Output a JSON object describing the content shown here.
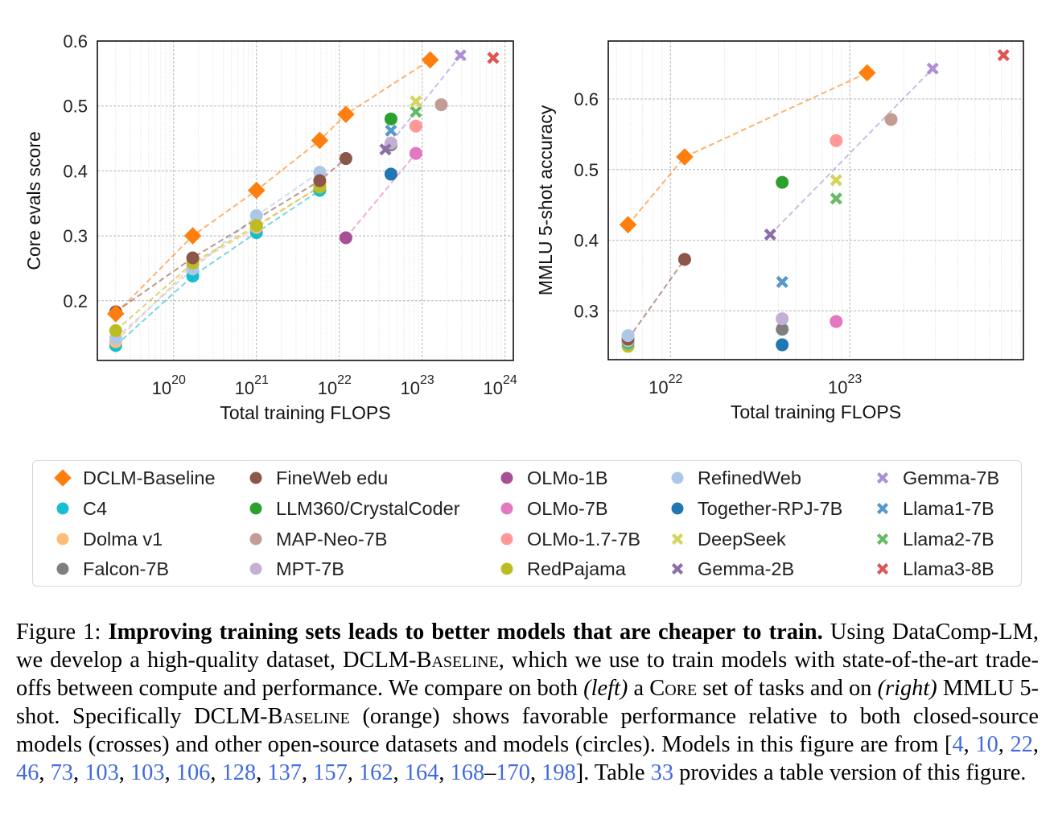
{
  "legend": {
    "items": [
      {
        "name": "DCLM-Baseline",
        "color": "#ff7f0e",
        "marker": "diamond"
      },
      {
        "name": "C4",
        "color": "#17becf",
        "marker": "circle"
      },
      {
        "name": "Dolma v1",
        "color": "#ffbb78",
        "marker": "circle"
      },
      {
        "name": "Falcon-7B",
        "color": "#7f7f7f",
        "marker": "circle"
      },
      {
        "name": "FineWeb edu",
        "color": "#8c564b",
        "marker": "circle"
      },
      {
        "name": "LLM360/CrystalCoder",
        "color": "#2ca02c",
        "marker": "circle"
      },
      {
        "name": "MAP-Neo-7B",
        "color": "#c49c94",
        "marker": "circle"
      },
      {
        "name": "MPT-7B",
        "color": "#c5b0d5",
        "marker": "circle"
      },
      {
        "name": "OLMo-1B",
        "color": "#a55194",
        "marker": "circle"
      },
      {
        "name": "OLMo-7B",
        "color": "#e377c2",
        "marker": "circle"
      },
      {
        "name": "OLMo-1.7-7B",
        "color": "#ff9896",
        "marker": "circle"
      },
      {
        "name": "RedPajama",
        "color": "#bcbd22",
        "marker": "circle"
      },
      {
        "name": "RefinedWeb",
        "color": "#aec7e8",
        "marker": "circle"
      },
      {
        "name": "Together-RPJ-7B",
        "color": "#1f77b4",
        "marker": "circle"
      },
      {
        "name": "DeepSeek",
        "color": "#d4d45e",
        "marker": "x"
      },
      {
        "name": "Gemma-2B",
        "color": "#8a6fa8",
        "marker": "x"
      },
      {
        "name": "Gemma-7B",
        "color": "#ae8fd6",
        "marker": "x"
      },
      {
        "name": "Llama1-7B",
        "color": "#5599cc",
        "marker": "x"
      },
      {
        "name": "Llama2-7B",
        "color": "#66bb66",
        "marker": "x"
      },
      {
        "name": "Llama3-8B",
        "color": "#e05555",
        "marker": "x"
      }
    ]
  },
  "chart_data": [
    {
      "type": "scatter",
      "xlabel": "Total training FLOPS",
      "ylabel": "Core evals score",
      "xscale": "log",
      "xlim": [
        1.2e+19,
        1.26e+24
      ],
      "ylim": [
        0.108,
        0.6
      ],
      "grid": true,
      "xticks": [
        {
          "value": 1e+20,
          "base": "10",
          "exp": "20"
        },
        {
          "value": 1e+21,
          "base": "10",
          "exp": "21"
        },
        {
          "value": 1e+22,
          "base": "10",
          "exp": "22"
        },
        {
          "value": 1e+23,
          "base": "10",
          "exp": "23"
        },
        {
          "value": 1e+24,
          "base": "10",
          "exp": "24"
        }
      ],
      "yticks": [
        {
          "value": 0.2,
          "label": "0.2"
        },
        {
          "value": 0.3,
          "label": "0.3"
        },
        {
          "value": 0.4,
          "label": "0.4"
        },
        {
          "value": 0.5,
          "label": "0.5"
        },
        {
          "value": 0.6,
          "label": "0.6"
        }
      ],
      "links": [
        {
          "from": "OLMo-1B",
          "to": "OLMo-7B",
          "color": "#e377c2"
        },
        {
          "from": "Gemma-2B",
          "to": "Gemma-7B",
          "color": "#ae8fd6"
        }
      ],
      "series": [
        {
          "name": "C4",
          "x": [
            2e+19,
            1.7e+20,
            1e+21,
            5.8e+21
          ],
          "y": [
            0.131,
            0.238,
            0.305,
            0.37
          ]
        },
        {
          "name": "Dolma v1",
          "x": [
            2e+19,
            1.7e+20,
            1e+21,
            5.8e+21
          ],
          "y": [
            0.137,
            0.255,
            0.313,
            0.377
          ]
        },
        {
          "name": "RefinedWeb",
          "x": [
            2e+19,
            1.7e+20,
            1e+21,
            5.8e+21
          ],
          "y": [
            0.142,
            0.249,
            0.331,
            0.398
          ]
        },
        {
          "name": "RedPajama",
          "x": [
            2e+19,
            1.7e+20,
            1e+21,
            5.8e+21
          ],
          "y": [
            0.154,
            0.258,
            0.316,
            0.375
          ]
        },
        {
          "name": "FineWeb edu",
          "x": [
            2e+19,
            1.7e+20,
            5.8e+21,
            1.2e+22
          ],
          "y": [
            0.183,
            0.266,
            0.385,
            0.419
          ]
        },
        {
          "name": "Falcon-7B",
          "x": [
            4.2e+22
          ],
          "y": [
            0.44
          ]
        },
        {
          "name": "MPT-7B",
          "x": [
            4.2e+22
          ],
          "y": [
            0.443
          ]
        },
        {
          "name": "LLM360/CrystalCoder",
          "x": [
            4.2e+22
          ],
          "y": [
            0.48
          ]
        },
        {
          "name": "Together-RPJ-7B",
          "x": [
            4.2e+22
          ],
          "y": [
            0.395
          ]
        },
        {
          "name": "Llama1-7B",
          "x": [
            4.2e+22
          ],
          "y": [
            0.462
          ]
        },
        {
          "name": "Gemma-2B",
          "x": [
            3.6e+22
          ],
          "y": [
            0.433
          ]
        },
        {
          "name": "OLMo-1B",
          "x": [
            1.2e+22
          ],
          "y": [
            0.297
          ]
        },
        {
          "name": "OLMo-7B",
          "x": [
            8.4e+22
          ],
          "y": [
            0.427
          ]
        },
        {
          "name": "OLMo-1.7-7B",
          "x": [
            8.4e+22
          ],
          "y": [
            0.469
          ]
        },
        {
          "name": "Llama2-7B",
          "x": [
            8.4e+22
          ],
          "y": [
            0.491
          ]
        },
        {
          "name": "DeepSeek",
          "x": [
            8.4e+22
          ],
          "y": [
            0.507
          ]
        },
        {
          "name": "MAP-Neo-7B",
          "x": [
            1.7e+23
          ],
          "y": [
            0.502
          ]
        },
        {
          "name": "Gemma-7B",
          "x": [
            2.9e+23
          ],
          "y": [
            0.578
          ]
        },
        {
          "name": "Llama3-8B",
          "x": [
            7.2e+23
          ],
          "y": [
            0.574
          ]
        },
        {
          "name": "DCLM-Baseline",
          "x": [
            2e+19,
            1.7e+20,
            1e+21,
            5.8e+21,
            1.2e+22,
            1.25e+23
          ],
          "y": [
            0.18,
            0.3,
            0.37,
            0.447,
            0.487,
            0.571
          ]
        }
      ]
    },
    {
      "type": "scatter",
      "xlabel": "Total training FLOPS",
      "ylabel": "MMLU 5-shot accuracy",
      "xscale": "log",
      "xlim": [
        4.5e+21,
        9.3e+23
      ],
      "ylim": [
        0.231,
        0.682
      ],
      "grid": true,
      "xticks": [
        {
          "value": 1e+22,
          "base": "10",
          "exp": "22"
        },
        {
          "value": 1e+23,
          "base": "10",
          "exp": "23"
        }
      ],
      "yticks": [
        {
          "value": 0.3,
          "label": "0.3"
        },
        {
          "value": 0.4,
          "label": "0.4"
        },
        {
          "value": 0.5,
          "label": "0.5"
        },
        {
          "value": 0.6,
          "label": "0.6"
        }
      ],
      "links": [
        {
          "from": "Gemma-2B",
          "to": "Gemma-7B",
          "color": "#ae8fd6"
        }
      ],
      "series": [
        {
          "name": "RedPajama",
          "x": [
            5.8e+21
          ],
          "y": [
            0.25
          ]
        },
        {
          "name": "C4",
          "x": [
            5.8e+21
          ],
          "y": [
            0.255
          ]
        },
        {
          "name": "Dolma v1",
          "x": [
            5.8e+21
          ],
          "y": [
            0.258
          ]
        },
        {
          "name": "FineWeb edu",
          "x": [
            5.8e+21,
            1.2e+22
          ],
          "y": [
            0.26,
            0.373
          ]
        },
        {
          "name": "RefinedWeb",
          "x": [
            5.8e+21
          ],
          "y": [
            0.265
          ]
        },
        {
          "name": "Together-RPJ-7B",
          "x": [
            4.2e+22
          ],
          "y": [
            0.252
          ]
        },
        {
          "name": "Falcon-7B",
          "x": [
            4.2e+22
          ],
          "y": [
            0.274
          ]
        },
        {
          "name": "MPT-7B",
          "x": [
            4.2e+22
          ],
          "y": [
            0.289
          ]
        },
        {
          "name": "Llama1-7B",
          "x": [
            4.2e+22
          ],
          "y": [
            0.341
          ]
        },
        {
          "name": "LLM360/CrystalCoder",
          "x": [
            4.2e+22
          ],
          "y": [
            0.482
          ]
        },
        {
          "name": "Gemma-2B",
          "x": [
            3.6e+22
          ],
          "y": [
            0.408
          ]
        },
        {
          "name": "OLMo-7B",
          "x": [
            8.4e+22
          ],
          "y": [
            0.285
          ]
        },
        {
          "name": "Llama2-7B",
          "x": [
            8.4e+22
          ],
          "y": [
            0.459
          ]
        },
        {
          "name": "DeepSeek",
          "x": [
            8.4e+22
          ],
          "y": [
            0.485
          ]
        },
        {
          "name": "OLMo-1.7-7B",
          "x": [
            8.4e+22
          ],
          "y": [
            0.541
          ]
        },
        {
          "name": "MAP-Neo-7B",
          "x": [
            1.7e+23
          ],
          "y": [
            0.571
          ]
        },
        {
          "name": "Gemma-7B",
          "x": [
            2.9e+23
          ],
          "y": [
            0.643
          ]
        },
        {
          "name": "Llama3-8B",
          "x": [
            7.2e+23
          ],
          "y": [
            0.662
          ]
        },
        {
          "name": "DCLM-Baseline",
          "x": [
            5.8e+21,
            1.2e+22,
            1.25e+23
          ],
          "y": [
            0.422,
            0.518,
            0.637
          ]
        }
      ]
    }
  ],
  "caption": {
    "segments": [
      {
        "t": "Figure 1: ",
        "s": "n"
      },
      {
        "t": "Improving training sets leads to better models that are cheaper to train.",
        "s": "b"
      },
      {
        "t": " Using DataComp-LM, we develop a high-quality dataset, ",
        "s": "n"
      },
      {
        "t": "DCLM-Baseline",
        "s": "sc"
      },
      {
        "t": ", which we use to train models with state-of-the-art trade-offs between compute and performance. We compare on both ",
        "s": "n"
      },
      {
        "t": "(left)",
        "s": "i"
      },
      {
        "t": " a ",
        "s": "n"
      },
      {
        "t": "Core",
        "s": "sc"
      },
      {
        "t": " set of tasks and on ",
        "s": "n"
      },
      {
        "t": "(right)",
        "s": "i"
      },
      {
        "t": " MMLU 5-shot. Specifically ",
        "s": "n"
      },
      {
        "t": "DCLM-Baseline",
        "s": "sc"
      },
      {
        "t": " (orange) shows favorable performance relative to both closed-source models (crosses) and other open-source datasets and models (circles). Models in this figure are from [",
        "s": "n"
      },
      {
        "t": "4",
        "s": "link"
      },
      {
        "t": ", ",
        "s": "n"
      },
      {
        "t": "10",
        "s": "link"
      },
      {
        "t": ", ",
        "s": "n"
      },
      {
        "t": "22",
        "s": "link"
      },
      {
        "t": ", ",
        "s": "n"
      },
      {
        "t": "46",
        "s": "link"
      },
      {
        "t": ", ",
        "s": "n"
      },
      {
        "t": "73",
        "s": "link"
      },
      {
        "t": ", ",
        "s": "n"
      },
      {
        "t": "103",
        "s": "link"
      },
      {
        "t": ", ",
        "s": "n"
      },
      {
        "t": "103",
        "s": "link"
      },
      {
        "t": ", ",
        "s": "n"
      },
      {
        "t": "106",
        "s": "link"
      },
      {
        "t": ", ",
        "s": "n"
      },
      {
        "t": "128",
        "s": "link"
      },
      {
        "t": ", ",
        "s": "n"
      },
      {
        "t": "137",
        "s": "link"
      },
      {
        "t": ", ",
        "s": "n"
      },
      {
        "t": "157",
        "s": "link"
      },
      {
        "t": ", ",
        "s": "n"
      },
      {
        "t": "162",
        "s": "link"
      },
      {
        "t": ", ",
        "s": "n"
      },
      {
        "t": "164",
        "s": "link"
      },
      {
        "t": ", ",
        "s": "n"
      },
      {
        "t": "168",
        "s": "link"
      },
      {
        "t": "–",
        "s": "n"
      },
      {
        "t": "170",
        "s": "link"
      },
      {
        "t": ", ",
        "s": "n"
      },
      {
        "t": "198",
        "s": "link"
      },
      {
        "t": "]. Table ",
        "s": "n"
      },
      {
        "t": "33",
        "s": "link"
      },
      {
        "t": " provides a table version of this figure.",
        "s": "n"
      }
    ]
  }
}
